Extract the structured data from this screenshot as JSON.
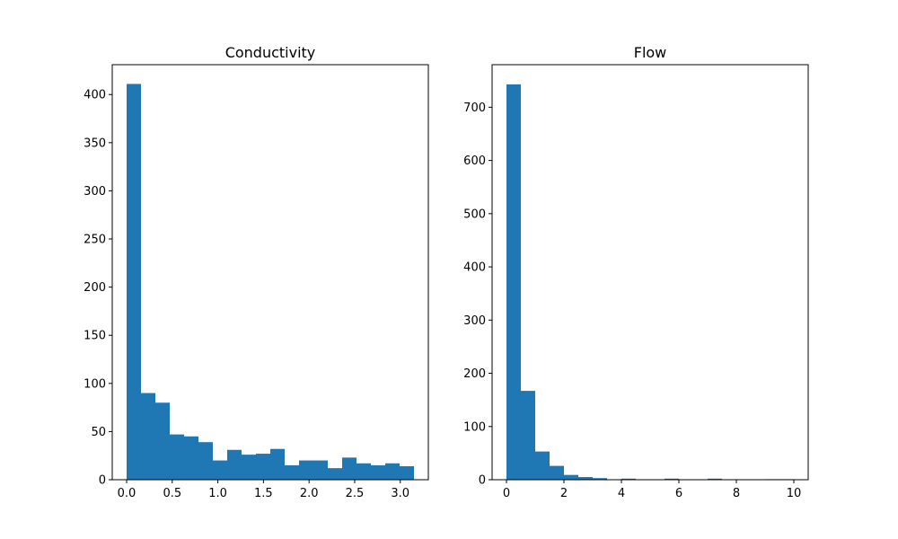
{
  "chart_data": [
    {
      "type": "bar",
      "title": "Conductivity",
      "xlabel": "",
      "ylabel": "",
      "bin_edges": [
        0.0,
        0.1575,
        0.315,
        0.4725,
        0.63,
        0.7875,
        0.945,
        1.1025,
        1.26,
        1.4175,
        1.575,
        1.7325,
        1.89,
        2.0475,
        2.205,
        2.3625,
        2.52,
        2.6775,
        2.835,
        2.9925,
        3.15
      ],
      "values": [
        411,
        90,
        80,
        47,
        45,
        39,
        20,
        31,
        26,
        27,
        32,
        15,
        20,
        20,
        12,
        23,
        17,
        15,
        17,
        14
      ],
      "xlim": [
        -0.1575,
        3.3075
      ],
      "ylim": [
        0,
        431
      ],
      "xticks": [
        0.0,
        0.5,
        1.0,
        1.5,
        2.0,
        2.5,
        3.0
      ],
      "xtick_labels": [
        "0.0",
        "0.5",
        "1.0",
        "1.5",
        "2.0",
        "2.5",
        "3.0"
      ],
      "yticks": [
        0,
        50,
        100,
        150,
        200,
        250,
        300,
        350,
        400
      ],
      "ytick_labels": [
        "0",
        "50",
        "100",
        "150",
        "200",
        "250",
        "300",
        "350",
        "400"
      ],
      "grid": false,
      "color": "#1f77b4"
    },
    {
      "type": "bar",
      "title": "Flow",
      "xlabel": "",
      "ylabel": "",
      "bin_edges": [
        0.0,
        0.5,
        1.0,
        1.5,
        2.0,
        2.5,
        3.0,
        3.5,
        4.0,
        4.5,
        5.0,
        5.5,
        6.0,
        6.5,
        7.0,
        7.5,
        8.0,
        8.5,
        9.0,
        9.5,
        10.0
      ],
      "values": [
        743,
        167,
        53,
        26,
        9,
        5,
        3,
        0,
        2,
        0,
        0,
        2,
        0,
        0,
        2,
        0,
        0,
        0,
        1,
        1
      ],
      "xlim": [
        -0.5,
        10.5
      ],
      "ylim": [
        0,
        780
      ],
      "xticks": [
        0,
        2,
        4,
        6,
        8,
        10
      ],
      "xtick_labels": [
        "0",
        "2",
        "4",
        "6",
        "8",
        "10"
      ],
      "yticks": [
        0,
        100,
        200,
        300,
        400,
        500,
        600,
        700
      ],
      "ytick_labels": [
        "0",
        "100",
        "200",
        "300",
        "400",
        "500",
        "600",
        "700"
      ],
      "grid": false,
      "color": "#1f77b4"
    }
  ]
}
